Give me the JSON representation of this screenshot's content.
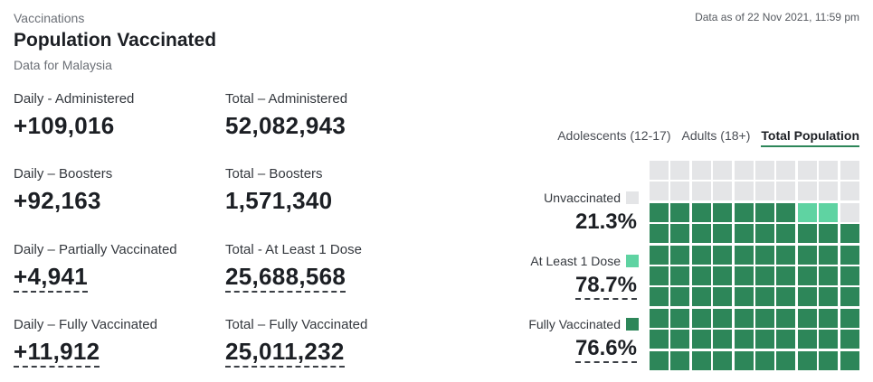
{
  "header": {
    "eyebrow": "Vaccinations",
    "title": "Population Vaccinated",
    "subtitle": "Data for Malaysia",
    "as_of": "Data as of 22 Nov 2021, 11:59 pm"
  },
  "stats": {
    "daily_administered": {
      "label": "Daily - Administered",
      "value": "+109,016"
    },
    "total_administered": {
      "label": "Total – Administered",
      "value": "52,082,943"
    },
    "daily_boosters": {
      "label": "Daily – Boosters",
      "value": "+92,163"
    },
    "total_boosters": {
      "label": "Total – Boosters",
      "value": "1,571,340"
    },
    "daily_partial": {
      "label": "Daily – Partially Vaccinated",
      "value": "+4,941"
    },
    "total_dose1": {
      "label": "Total - At Least 1 Dose",
      "value": "25,688,568"
    },
    "daily_full": {
      "label": "Daily – Fully Vaccinated",
      "value": "+11,912"
    },
    "total_full": {
      "label": "Total – Fully Vaccinated",
      "value": "25,011,232"
    }
  },
  "tabs": [
    {
      "label": "Adolescents (12-17)",
      "active": false
    },
    {
      "label": "Adults (18+)",
      "active": false
    },
    {
      "label": "Total Population",
      "active": true
    }
  ],
  "legend": {
    "unvaccinated": {
      "label": "Unvaccinated",
      "pct": "21.3%",
      "color": "#e4e5e7"
    },
    "dose1": {
      "label": "At Least 1 Dose",
      "pct": "78.7%",
      "color": "#5fd3a2"
    },
    "full": {
      "label": "Fully Vaccinated",
      "pct": "76.6%",
      "color": "#2d8659"
    }
  },
  "waffle": {
    "total_cells": 100,
    "full_cells": 77,
    "dose1_only_cells": 2
  }
}
